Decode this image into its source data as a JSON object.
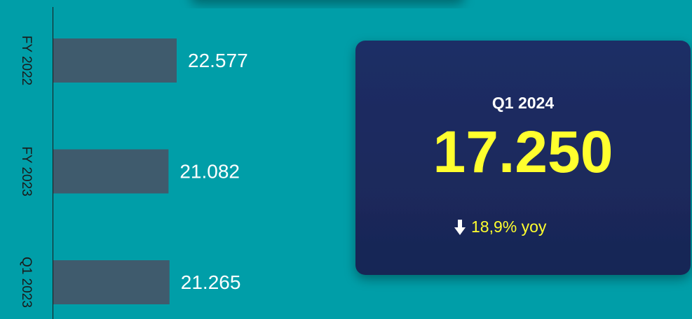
{
  "chart_data": {
    "type": "bar",
    "orientation": "horizontal",
    "categories": [
      "FY 2022",
      "FY 2023",
      "Q1 2023"
    ],
    "values": [
      22577,
      21082,
      21265
    ],
    "value_labels": [
      "22.577",
      "21.082",
      "21.265"
    ],
    "color": "#3f5b6d"
  },
  "kpi": {
    "title": "Q1 2024",
    "value": "17.250",
    "change": "18,9% yoy"
  }
}
